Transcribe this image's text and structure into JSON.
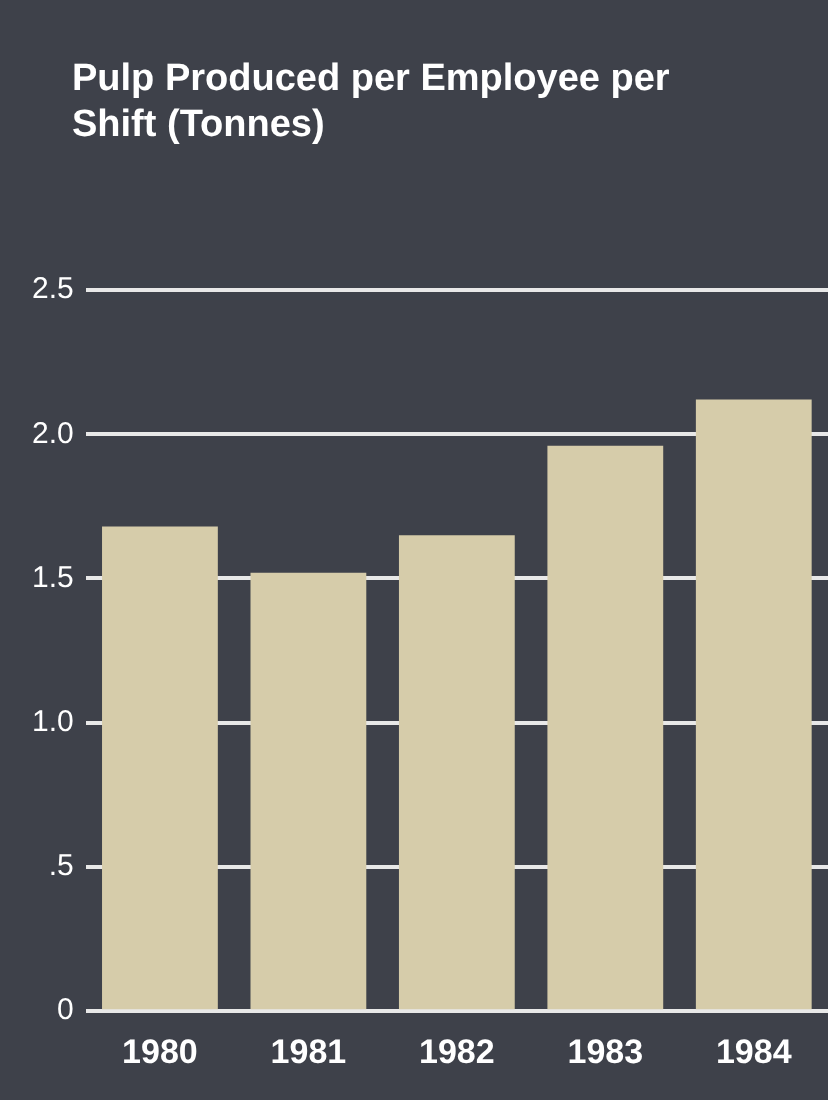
{
  "chart_data": {
    "type": "bar",
    "title": "Pulp Produced per Employee per Shift (Tonnes)",
    "categories": [
      "1980",
      "1981",
      "1982",
      "1983",
      "1984"
    ],
    "values": [
      1.68,
      1.52,
      1.65,
      1.96,
      2.12
    ],
    "color": "#d6ccaa",
    "ylim": [
      0,
      2.5
    ],
    "yticks": [
      {
        "value": 0,
        "label": "0"
      },
      {
        "value": 0.5,
        "label": ".5"
      },
      {
        "value": 1,
        "label": "1.0"
      },
      {
        "value": 1.5,
        "label": "1.5"
      },
      {
        "value": 2,
        "label": "2.0"
      },
      {
        "value": 2.5,
        "label": "2.5"
      }
    ],
    "grid": "y"
  }
}
